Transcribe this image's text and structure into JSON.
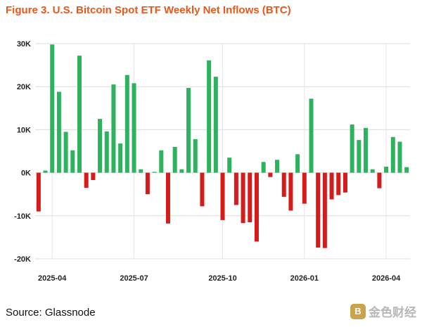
{
  "title": "Figure 3. U.S. Bitcoin Spot ETF Weekly Net Inflows (BTC)",
  "source": "Source: Glassnode",
  "watermark": {
    "logo_glyph": "B",
    "text": "金色财经"
  },
  "colors": {
    "positive": "#2db35d",
    "negative": "#d61b1b",
    "title": "#e8571b"
  },
  "chart_data": {
    "type": "bar",
    "title": "Figure 3. U.S. Bitcoin Spot ETF Weekly Net Inflows (BTC)",
    "xlabel": "",
    "ylabel": "",
    "ylim": [
      -20000,
      30000
    ],
    "yticks": [
      30000,
      20000,
      10000,
      0,
      -10000,
      -20000
    ],
    "ytick_labels": [
      "30K",
      "20K",
      "10K",
      "0K",
      "-10K",
      "-20K"
    ],
    "xtick_labels": [
      {
        "label": "2025-04",
        "index": 2
      },
      {
        "label": "2025-07",
        "index": 14
      },
      {
        "label": "2025-10",
        "index": 27
      },
      {
        "label": "2026-01",
        "index": 39
      },
      {
        "label": "2026-04",
        "index": 51
      }
    ],
    "grid": true,
    "legend": "none",
    "values": [
      -9000,
      500,
      29800,
      18800,
      9500,
      5200,
      27200,
      -3500,
      -1700,
      12500,
      9600,
      20500,
      6800,
      22700,
      20800,
      800,
      -5000,
      200,
      5200,
      -11800,
      6000,
      800,
      19700,
      7800,
      -7800,
      26100,
      22300,
      -11000,
      3500,
      -7500,
      -11700,
      -11500,
      -16000,
      2500,
      -1000,
      3000,
      -5600,
      -8800,
      4300,
      -7200,
      17200,
      -17400,
      -17500,
      -6200,
      -5200,
      -4600,
      11200,
      7600,
      10400,
      800,
      -3600,
      1400,
      8300,
      7200,
      1300
    ]
  }
}
